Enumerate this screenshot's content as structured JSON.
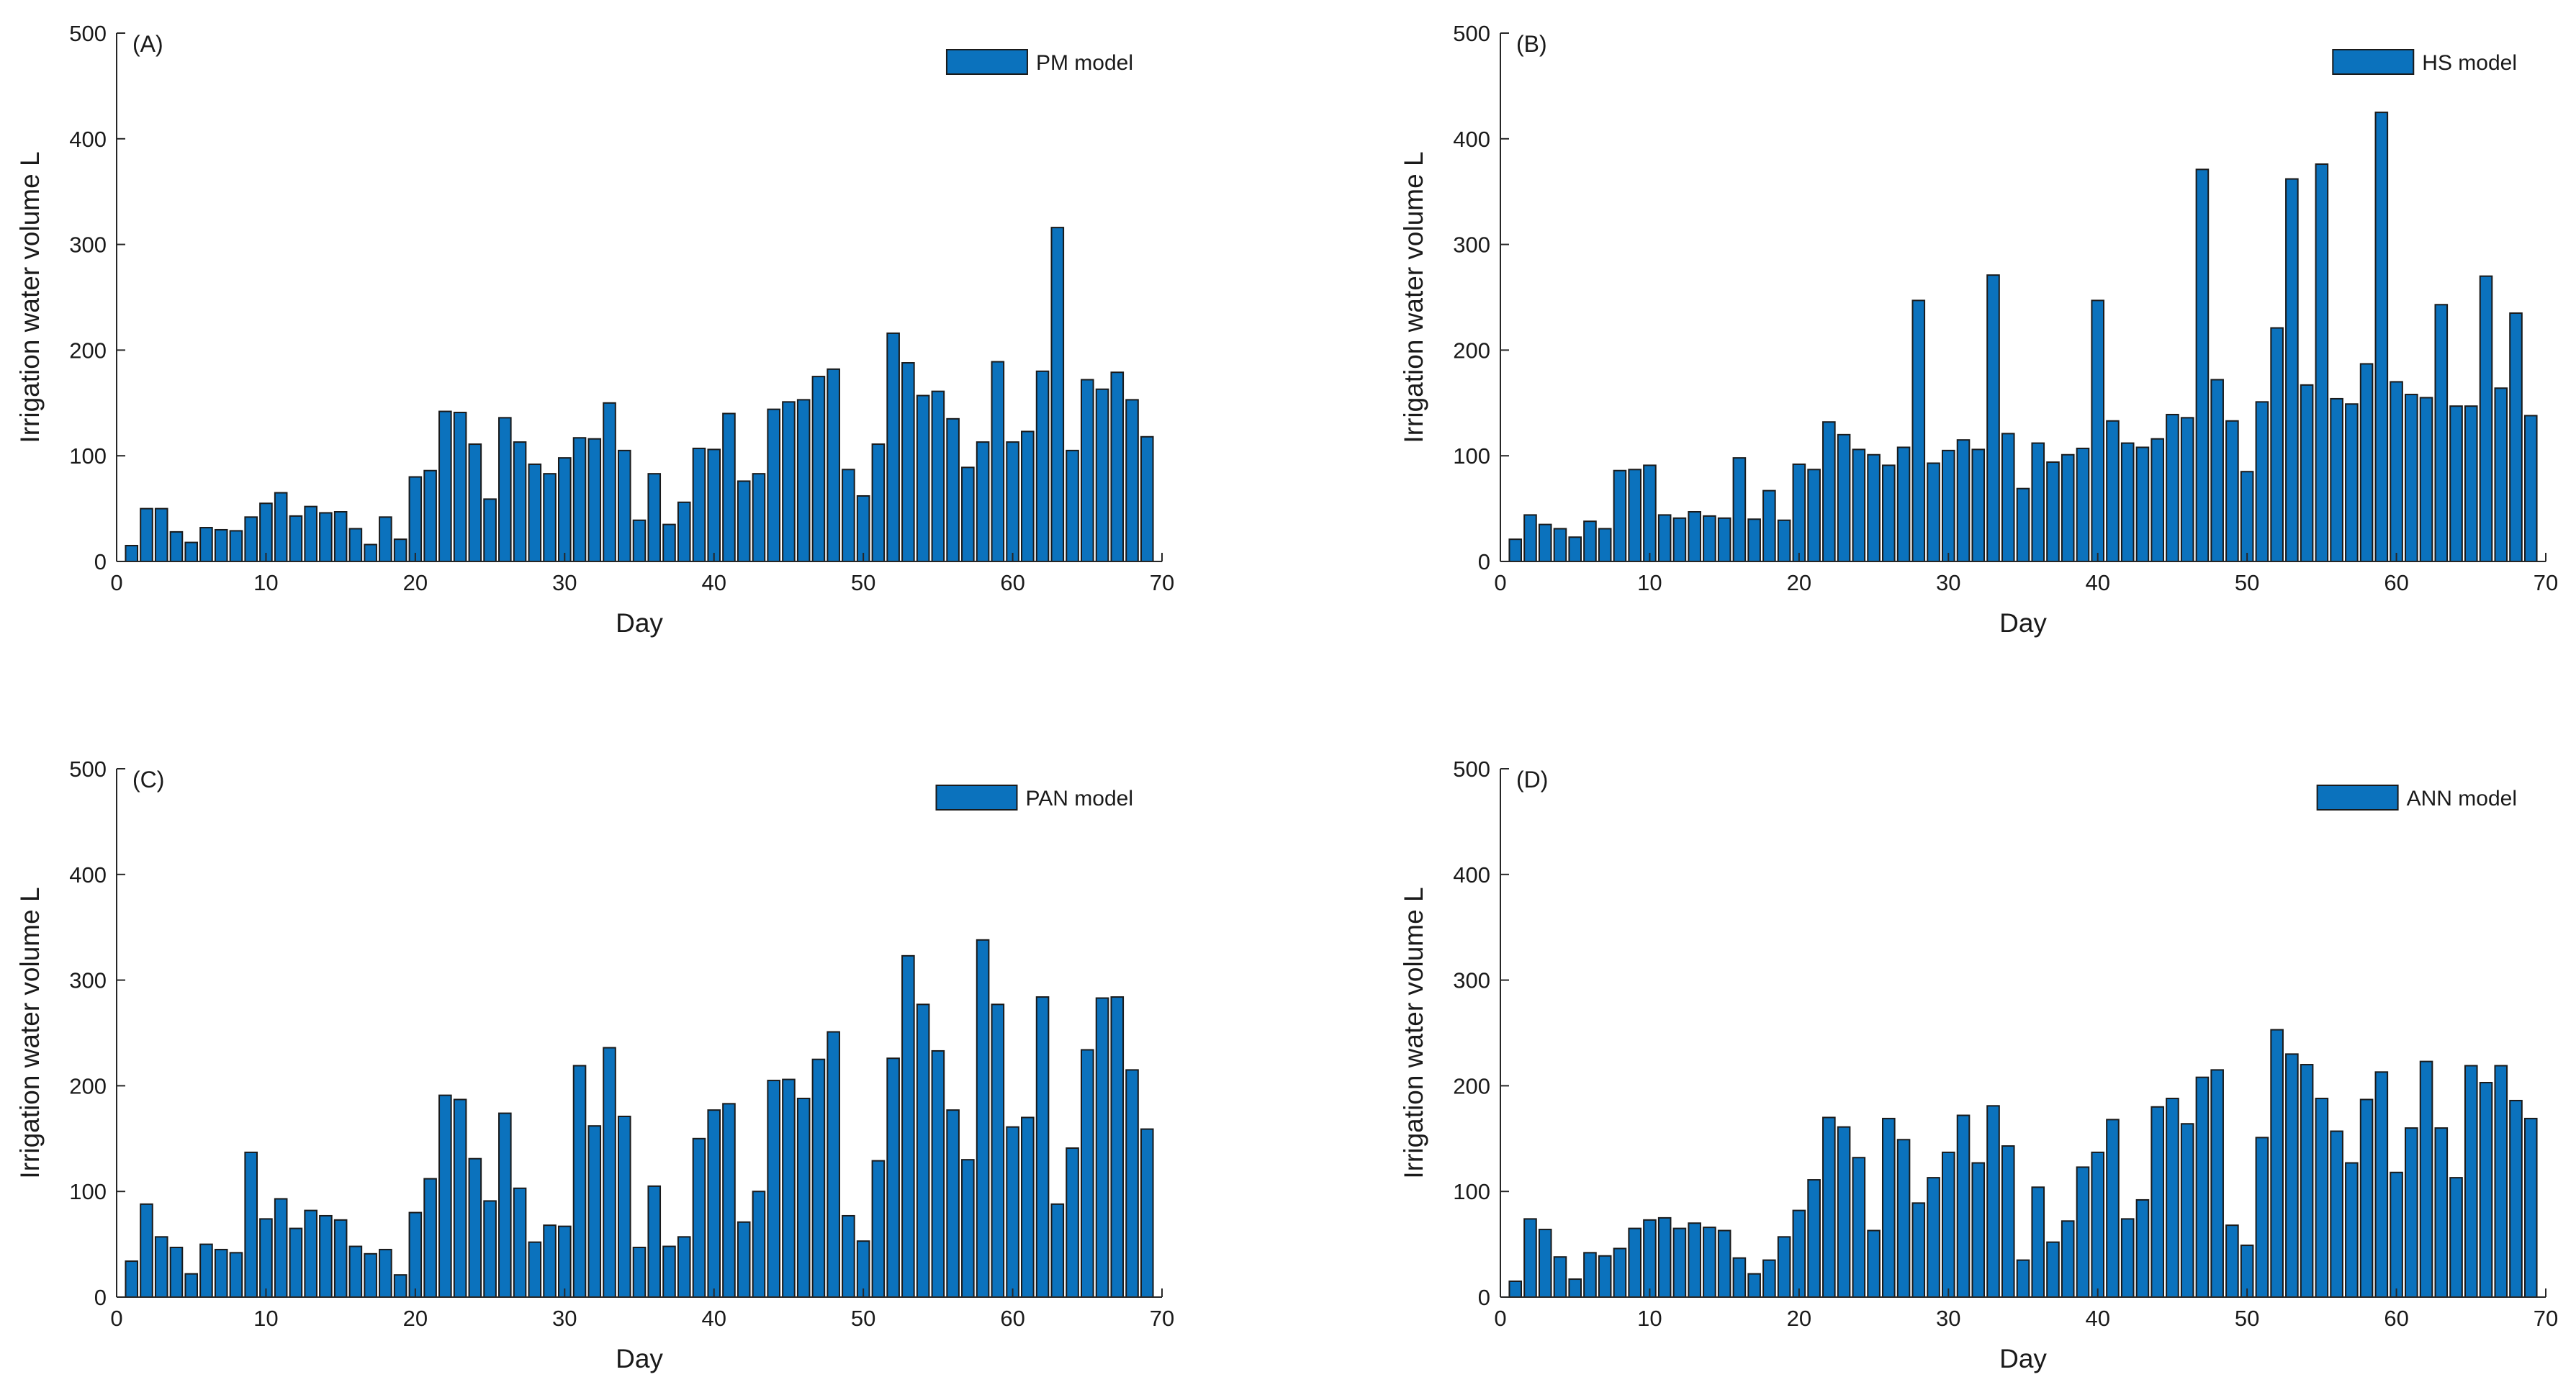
{
  "chart_data": [
    {
      "type": "bar",
      "panel_label": "(A)",
      "legend": [
        "PM model"
      ],
      "xlabel": "Day",
      "ylabel": "Irrigation water volume L",
      "xlim": [
        0,
        70
      ],
      "ylim": [
        0,
        500
      ],
      "xticks": [
        0,
        10,
        20,
        30,
        40,
        50,
        60,
        70
      ],
      "yticks": [
        0,
        100,
        200,
        300,
        400,
        500
      ],
      "bar_color": "#0b72bd",
      "x": [
        1,
        2,
        3,
        4,
        5,
        6,
        7,
        8,
        9,
        10,
        11,
        12,
        13,
        14,
        15,
        16,
        17,
        18,
        19,
        20,
        21,
        22,
        23,
        24,
        25,
        26,
        27,
        28,
        29,
        30,
        31,
        32,
        33,
        34,
        35,
        36,
        37,
        38,
        39,
        40,
        41,
        42,
        43,
        44,
        45,
        46,
        47,
        48,
        49,
        50,
        51,
        52,
        53,
        54,
        55,
        56,
        57,
        58,
        59,
        60,
        61,
        62,
        63,
        64,
        65,
        66,
        67,
        68,
        69
      ],
      "values": [
        15,
        50,
        50,
        28,
        18,
        32,
        30,
        29,
        42,
        55,
        65,
        43,
        52,
        46,
        47,
        31,
        16,
        42,
        21,
        80,
        86,
        142,
        141,
        111,
        59,
        136,
        113,
        92,
        83,
        98,
        117,
        116,
        150,
        105,
        39,
        83,
        35,
        56,
        107,
        106,
        140,
        76,
        83,
        144,
        151,
        153,
        175,
        182,
        87,
        62,
        111,
        216,
        188,
        157,
        161,
        135,
        89,
        113,
        189,
        113,
        123,
        180,
        316,
        105,
        172,
        163,
        179,
        153,
        118
      ]
    },
    {
      "type": "bar",
      "panel_label": "(B)",
      "legend": [
        "HS model"
      ],
      "xlabel": "Day",
      "ylabel": "Irrigation water volume L",
      "xlim": [
        0,
        70
      ],
      "ylim": [
        0,
        500
      ],
      "xticks": [
        0,
        10,
        20,
        30,
        40,
        50,
        60,
        70
      ],
      "yticks": [
        0,
        100,
        200,
        300,
        400,
        500
      ],
      "bar_color": "#0b72bd",
      "x": [
        1,
        2,
        3,
        4,
        5,
        6,
        7,
        8,
        9,
        10,
        11,
        12,
        13,
        14,
        15,
        16,
        17,
        18,
        19,
        20,
        21,
        22,
        23,
        24,
        25,
        26,
        27,
        28,
        29,
        30,
        31,
        32,
        33,
        34,
        35,
        36,
        37,
        38,
        39,
        40,
        41,
        42,
        43,
        44,
        45,
        46,
        47,
        48,
        49,
        50,
        51,
        52,
        53,
        54,
        55,
        56,
        57,
        58,
        59,
        60,
        61,
        62,
        63,
        64,
        65,
        66,
        67,
        68,
        69
      ],
      "values": [
        21,
        44,
        35,
        31,
        23,
        38,
        31,
        86,
        87,
        91,
        44,
        41,
        47,
        43,
        41,
        98,
        40,
        67,
        39,
        92,
        87,
        132,
        120,
        106,
        101,
        91,
        108,
        247,
        93,
        105,
        115,
        106,
        271,
        121,
        69,
        112,
        94,
        101,
        107,
        247,
        133,
        112,
        108,
        116,
        139,
        136,
        371,
        172,
        133,
        85,
        151,
        221,
        362,
        167,
        376,
        154,
        149,
        187,
        425,
        170,
        158,
        155,
        243,
        147,
        147,
        270,
        164,
        235,
        138
      ]
    },
    {
      "type": "bar",
      "panel_label": "(C)",
      "legend": [
        "PAN model"
      ],
      "xlabel": "Day",
      "ylabel": "Irrigation water volume L",
      "xlim": [
        0,
        70
      ],
      "ylim": [
        0,
        500
      ],
      "xticks": [
        0,
        10,
        20,
        30,
        40,
        50,
        60,
        70
      ],
      "yticks": [
        0,
        100,
        200,
        300,
        400,
        500
      ],
      "bar_color": "#0b72bd",
      "x": [
        1,
        2,
        3,
        4,
        5,
        6,
        7,
        8,
        9,
        10,
        11,
        12,
        13,
        14,
        15,
        16,
        17,
        18,
        19,
        20,
        21,
        22,
        23,
        24,
        25,
        26,
        27,
        28,
        29,
        30,
        31,
        32,
        33,
        34,
        35,
        36,
        37,
        38,
        39,
        40,
        41,
        42,
        43,
        44,
        45,
        46,
        47,
        48,
        49,
        50,
        51,
        52,
        53,
        54,
        55,
        56,
        57,
        58,
        59,
        60,
        61,
        62,
        63,
        64,
        65,
        66,
        67,
        68,
        69
      ],
      "values": [
        34,
        88,
        57,
        47,
        22,
        50,
        45,
        42,
        137,
        74,
        93,
        65,
        82,
        77,
        73,
        48,
        41,
        45,
        21,
        80,
        112,
        191,
        187,
        131,
        91,
        174,
        103,
        52,
        68,
        67,
        219,
        162,
        236,
        171,
        47,
        105,
        48,
        57,
        150,
        177,
        183,
        71,
        100,
        205,
        206,
        188,
        225,
        251,
        77,
        53,
        129,
        226,
        323,
        277,
        233,
        177,
        130,
        338,
        277,
        161,
        170,
        284,
        88,
        141,
        234,
        283,
        284,
        215,
        159
      ]
    },
    {
      "type": "bar",
      "panel_label": "(D)",
      "legend": [
        "ANN model"
      ],
      "xlabel": "Day",
      "ylabel": "Irrigation water volume L",
      "xlim": [
        0,
        70
      ],
      "ylim": [
        0,
        500
      ],
      "xticks": [
        0,
        10,
        20,
        30,
        40,
        50,
        60,
        70
      ],
      "yticks": [
        0,
        100,
        200,
        300,
        400,
        500
      ],
      "bar_color": "#0b72bd",
      "x": [
        1,
        2,
        3,
        4,
        5,
        6,
        7,
        8,
        9,
        10,
        11,
        12,
        13,
        14,
        15,
        16,
        17,
        18,
        19,
        20,
        21,
        22,
        23,
        24,
        25,
        26,
        27,
        28,
        29,
        30,
        31,
        32,
        33,
        34,
        35,
        36,
        37,
        38,
        39,
        40,
        41,
        42,
        43,
        44,
        45,
        46,
        47,
        48,
        49,
        50,
        51,
        52,
        53,
        54,
        55,
        56,
        57,
        58,
        59,
        60,
        61,
        62,
        63,
        64,
        65,
        66,
        67,
        68,
        69
      ],
      "values": [
        15,
        74,
        64,
        38,
        17,
        42,
        39,
        46,
        65,
        73,
        75,
        65,
        70,
        66,
        63,
        37,
        22,
        35,
        57,
        82,
        111,
        170,
        161,
        132,
        63,
        169,
        149,
        89,
        113,
        137,
        172,
        127,
        181,
        143,
        35,
        104,
        52,
        72,
        123,
        137,
        168,
        74,
        92,
        180,
        188,
        164,
        208,
        215,
        68,
        49,
        151,
        253,
        230,
        220,
        188,
        157,
        127,
        187,
        213,
        118,
        160,
        223,
        160,
        113,
        219,
        203,
        219,
        186,
        169
      ]
    }
  ]
}
